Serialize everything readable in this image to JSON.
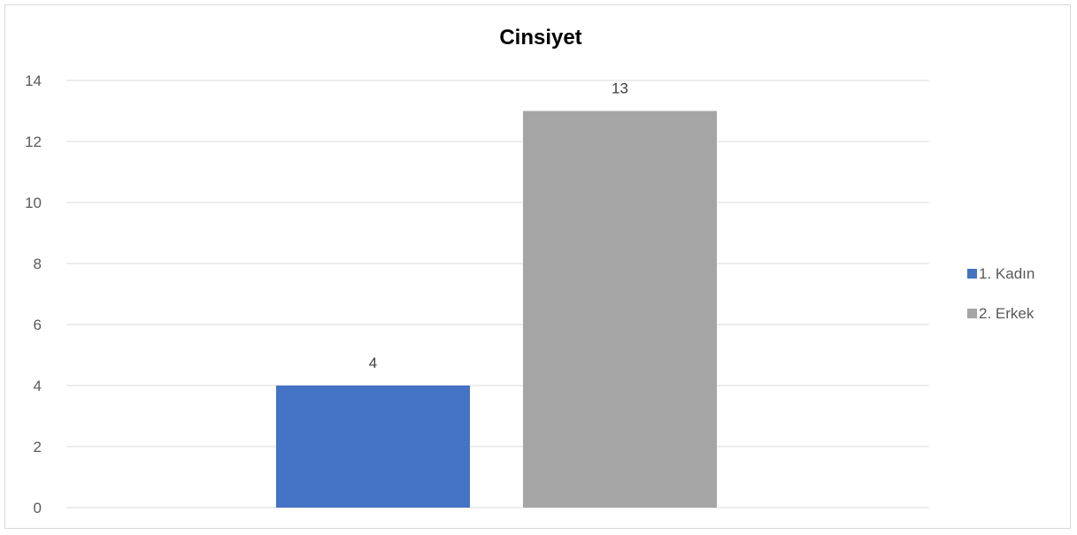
{
  "chart_data": {
    "type": "bar",
    "title": "Cinsiyet",
    "xlabel": "",
    "ylabel": "",
    "ylim": [
      0,
      14
    ],
    "yticks": [
      0,
      2,
      4,
      6,
      8,
      10,
      12,
      14
    ],
    "grid": true,
    "legend_position": "right",
    "series": [
      {
        "name": "1. Kadın",
        "value": 4,
        "color": "#4472C4"
      },
      {
        "name": "2. Erkek",
        "value": 13,
        "color": "#A5A5A5"
      }
    ]
  }
}
